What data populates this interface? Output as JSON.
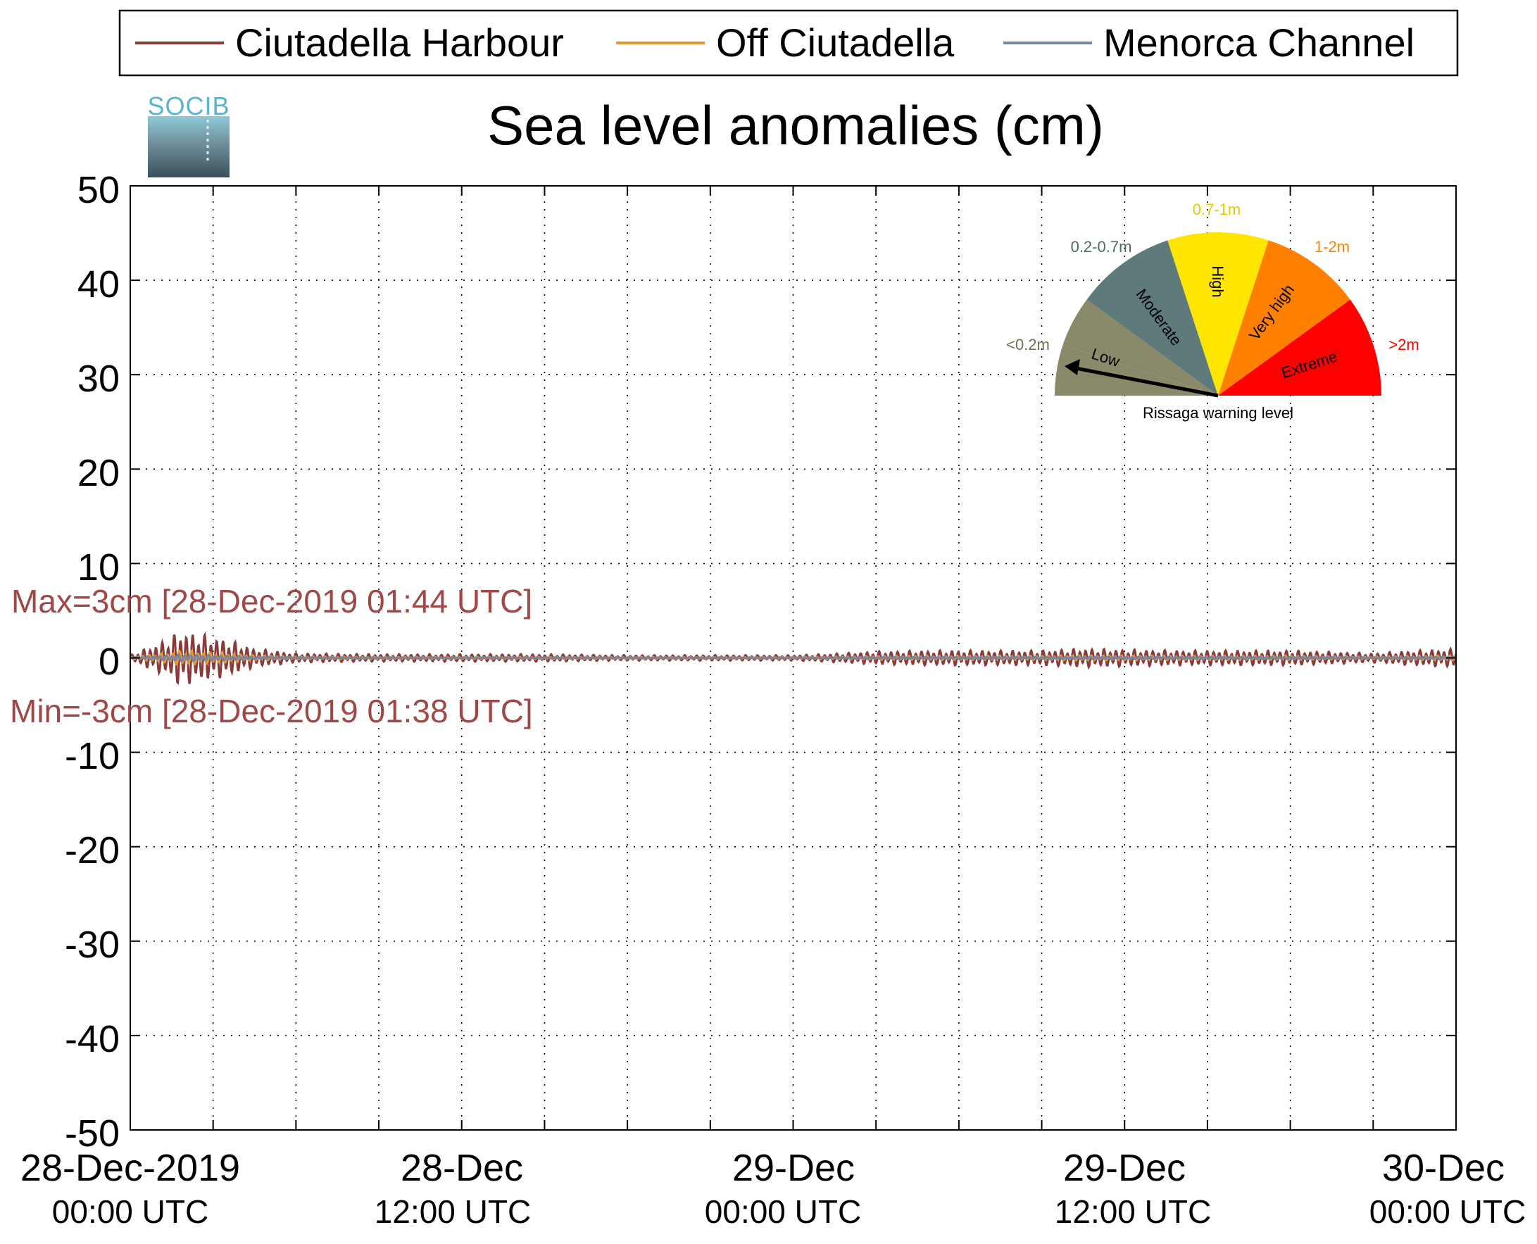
{
  "title": "Sea level anomalies (cm)",
  "logo_text": "SOCIB",
  "legend": {
    "items": [
      {
        "label": "Ciutadella Harbour",
        "color": "#8b3a3a"
      },
      {
        "label": "Off Ciutadella",
        "color": "#e39a33"
      },
      {
        "label": "Menorca Channel",
        "color": "#7a85a0"
      }
    ]
  },
  "annotations": {
    "max": "Max=3cm [28-Dec-2019 01:44 UTC]",
    "min": "Min=-3cm [28-Dec-2019 01:38 UTC]",
    "color": "#a04848"
  },
  "gauge": {
    "caption": "Rissaga warning level",
    "level": "Low",
    "segments": [
      {
        "name": "Low",
        "range": "<0.2m",
        "color": "#8a8a6b",
        "label_color": "#6f6f52"
      },
      {
        "name": "Moderate",
        "range": "0.2-0.7m",
        "color": "#5f7a7a",
        "label_color": "#4f6a6a"
      },
      {
        "name": "High",
        "range": "0.7-1m",
        "color": "#ffe600",
        "label_color": "#e8c800"
      },
      {
        "name": "Very high",
        "range": "1-2m",
        "color": "#ff8000",
        "label_color": "#ff8000"
      },
      {
        "name": "Extreme",
        "range": ">2m",
        "color": "#ff0000",
        "label_color": "#ff0000"
      }
    ]
  },
  "chart_data": {
    "type": "line",
    "title": "Sea level anomalies (cm)",
    "ylim": [
      -50,
      50
    ],
    "yticks": [
      "50",
      "40",
      "30",
      "20",
      "10",
      "0",
      "-10",
      "-20",
      "-30",
      "-40",
      "-50"
    ],
    "xlim_hours": [
      0,
      48
    ],
    "xtick_labels": [
      {
        "hour": 0,
        "line1": "28-Dec-2019",
        "line2": "00:00 UTC"
      },
      {
        "hour": 12,
        "line1": "28-Dec",
        "line2": "12:00 UTC"
      },
      {
        "hour": 24,
        "line1": "29-Dec",
        "line2": "00:00 UTC"
      },
      {
        "hour": 36,
        "line1": "29-Dec",
        "line2": "12:00 UTC"
      },
      {
        "hour": 48,
        "line1": "30-Dec",
        "line2": "00:00 UTC"
      }
    ],
    "grid": true,
    "legend_position": "top",
    "series": [
      {
        "name": "Ciutadella Harbour",
        "color": "#8b3a3a",
        "envelope_hours": [
          0,
          1.5,
          1.73,
          2.5,
          3.5,
          4.5,
          6,
          9,
          12,
          15,
          18,
          21,
          24,
          25,
          27,
          29,
          31,
          33,
          34.5,
          36,
          38,
          40,
          42,
          44,
          45,
          46.5,
          48
        ],
        "envelope_amp": [
          0.3,
          2.2,
          3.0,
          2.6,
          2.0,
          1.0,
          0.5,
          0.4,
          0.4,
          0.4,
          0.3,
          0.3,
          0.3,
          0.4,
          0.7,
          0.8,
          0.8,
          0.8,
          1.0,
          0.9,
          0.8,
          0.8,
          0.8,
          0.6,
          0.5,
          0.8,
          1.0
        ],
        "max": 3,
        "min": -3
      },
      {
        "name": "Off Ciutadella",
        "color": "#e39a33",
        "envelope_amp_scale": 0.25
      },
      {
        "name": "Menorca Channel",
        "color": "#7a85a0",
        "envelope_amp_scale": 0.12
      }
    ]
  }
}
